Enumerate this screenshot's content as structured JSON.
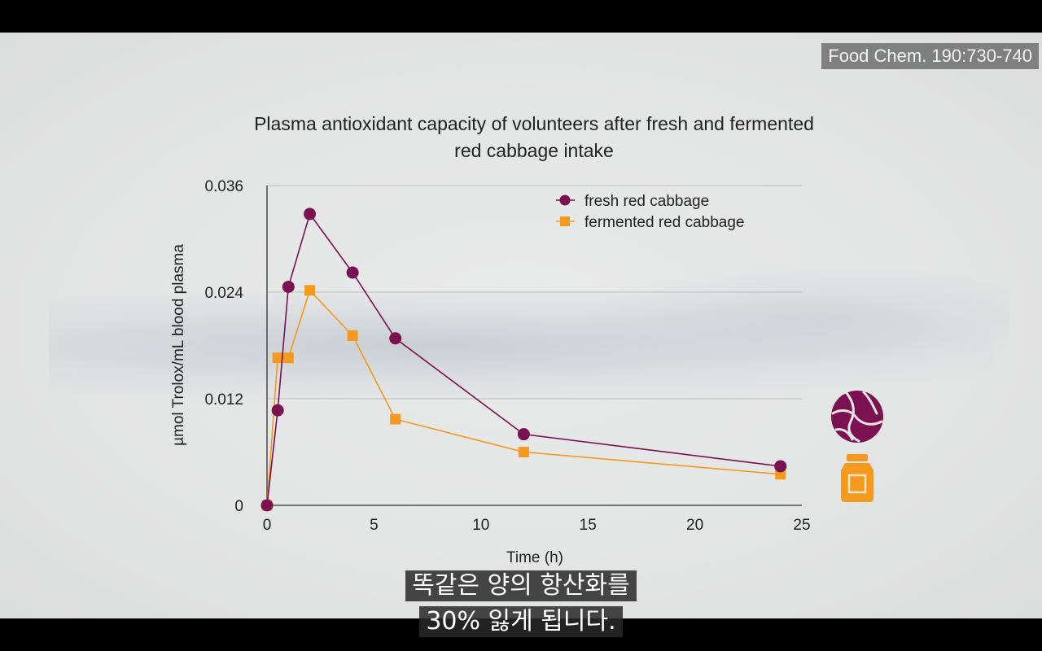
{
  "citation": "Food Chem. 190:730-740",
  "subtitles": [
    "똑같은 양의 항산화를",
    "30% 잃게 됩니다."
  ],
  "colors": {
    "fresh": "#7b1150",
    "fermented": "#f39a1f",
    "grid": "#bcbcbc",
    "axis": "#333333"
  },
  "icons": {
    "fresh": "red-cabbage-icon",
    "fermented": "jar-icon"
  },
  "chart_data": {
    "type": "line",
    "title": "Plasma antioxidant capacity of volunteers after fresh and fermented red cabbage intake",
    "xlabel": "Time (h)",
    "ylabel": "µmol Trolox/mL blood plasma",
    "xlim": [
      0,
      25
    ],
    "ylim": [
      0,
      0.036
    ],
    "xticks": [
      0,
      5,
      10,
      15,
      20,
      25
    ],
    "yticks": [
      0,
      0.012,
      0.024,
      0.036
    ],
    "ytick_labels": [
      "0",
      "0.012",
      "0.024",
      "0.036"
    ],
    "grid": true,
    "legend_position": "top-right",
    "series": [
      {
        "name": "fresh red cabbage",
        "marker": "circle",
        "x": [
          0,
          0.5,
          1,
          2,
          4,
          6,
          12,
          24
        ],
        "y": [
          0,
          0.0107,
          0.0246,
          0.0328,
          0.0262,
          0.0188,
          0.008,
          0.0044
        ]
      },
      {
        "name": "fermented red cabbage",
        "marker": "square",
        "x": [
          0,
          0.5,
          1,
          2,
          4,
          6,
          12,
          24
        ],
        "y": [
          0,
          0.0166,
          0.0166,
          0.0242,
          0.0191,
          0.0097,
          0.006,
          0.0035
        ]
      }
    ]
  }
}
